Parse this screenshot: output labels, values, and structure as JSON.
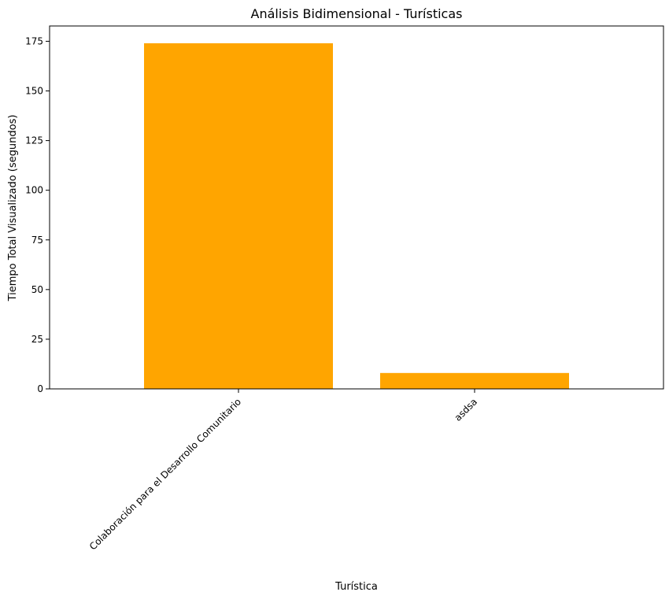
{
  "chart_data": {
    "type": "bar",
    "title": "Análisis Bidimensional - Turísticas",
    "xlabel": "Turística",
    "ylabel": "Tiempo Total Visualizado (segundos)",
    "categories": [
      "Colaboración para el Desarrollo Comunitario",
      "asdsa"
    ],
    "values": [
      174,
      8
    ],
    "ylim": [
      0,
      182.7
    ],
    "yticks": [
      0,
      25,
      50,
      75,
      100,
      125,
      150,
      175
    ],
    "bar_color": "#ffa500",
    "grid": false,
    "xtick_rotation_deg": 45
  }
}
